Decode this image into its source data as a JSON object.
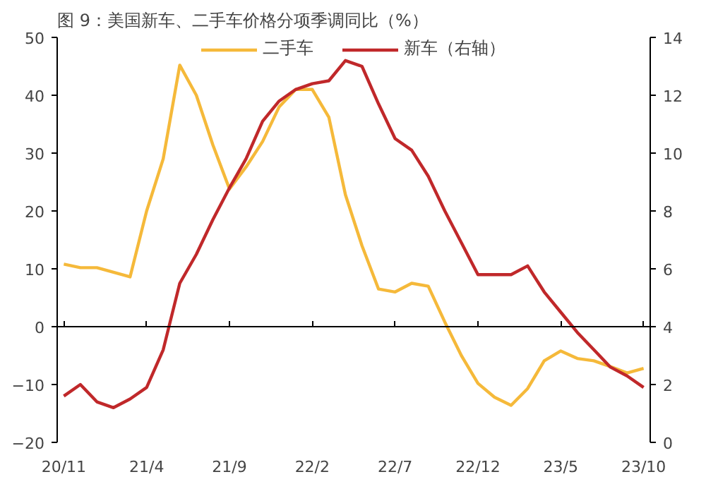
{
  "chart_data": {
    "type": "line",
    "title": "图 9：美国新车、二手车价格分项季调同比（%）",
    "categories": [
      "20/11",
      null,
      null,
      null,
      null,
      "21/4",
      null,
      null,
      null,
      null,
      "21/9",
      null,
      null,
      null,
      null,
      "22/2",
      null,
      null,
      null,
      null,
      "22/7",
      null,
      null,
      null,
      null,
      "22/12",
      null,
      null,
      null,
      null,
      "23/5",
      null,
      null,
      null,
      null,
      "23/10"
    ],
    "series": [
      {
        "name": "二手车",
        "color": "#f5b93a",
        "values": [
          10.8,
          10.2,
          10.2,
          9.4,
          8.6,
          20,
          29,
          45.2,
          40,
          31.4,
          23.8,
          27.6,
          32,
          38,
          41,
          41,
          36.2,
          22.8,
          14,
          6.5,
          6,
          7.5,
          7,
          0.8,
          -5,
          -9.8,
          -12.2,
          -13.6,
          -10.7,
          -5.9,
          -4.2,
          -5.5,
          -5.9,
          -6.9,
          -8,
          -7.2
        ]
      },
      {
        "name": "新车（右轴）",
        "color": "#c0282a",
        "axis": "y2",
        "values": [
          1.6,
          2,
          1.4,
          1.2,
          1.5,
          1.9,
          3.2,
          5.5,
          6.5,
          7.7,
          8.8,
          9.8,
          11.1,
          11.8,
          12.2,
          12.4,
          12.5,
          13.2,
          13,
          11.7,
          10.5,
          10.1,
          9.2,
          8,
          6.9,
          5.8,
          5.8,
          5.8,
          6.1,
          5.2,
          4.5,
          3.8,
          3.2,
          2.6,
          2.3,
          1.9
        ]
      }
    ],
    "ylim": [
      -20,
      50
    ],
    "yticks": [
      -20,
      -10,
      0,
      10,
      20,
      30,
      40,
      50
    ],
    "y2lim": [
      0,
      14
    ],
    "y2ticks": [
      0,
      2,
      4,
      6,
      8,
      10,
      12,
      14
    ],
    "legend": "top"
  }
}
